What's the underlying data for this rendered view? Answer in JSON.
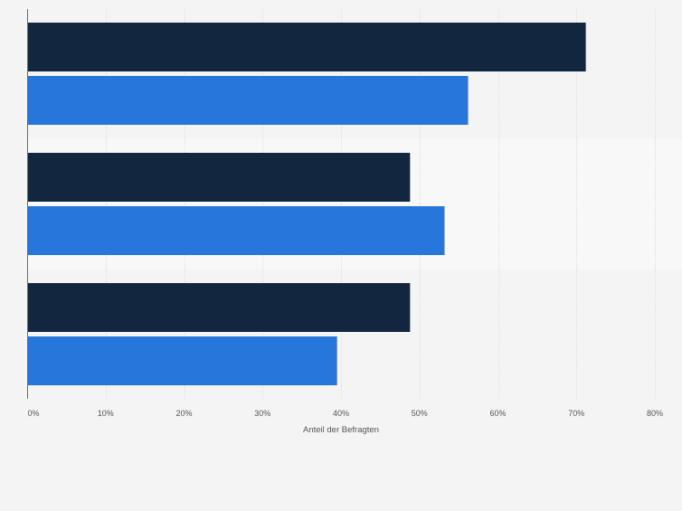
{
  "chart_data": {
    "type": "bar",
    "orientation": "horizontal",
    "categories": [
      "",
      "",
      ""
    ],
    "series": [
      {
        "values": [
          71.2,
          48.8,
          48.8
        ],
        "color": "#12263f"
      },
      {
        "values": [
          56.2,
          53.2,
          39.5
        ],
        "color": "#2776dc"
      }
    ],
    "xlabel": "Anteil der Befragten",
    "ylabel": "",
    "xlim": [
      0,
      80
    ],
    "x_ticks": [
      0,
      10,
      20,
      30,
      40,
      50,
      60,
      70,
      80
    ],
    "tick_format": "{v}%",
    "grid": true,
    "legend": "none",
    "band_colors": [
      "#f4f4f4",
      "#f8f8f8"
    ]
  }
}
